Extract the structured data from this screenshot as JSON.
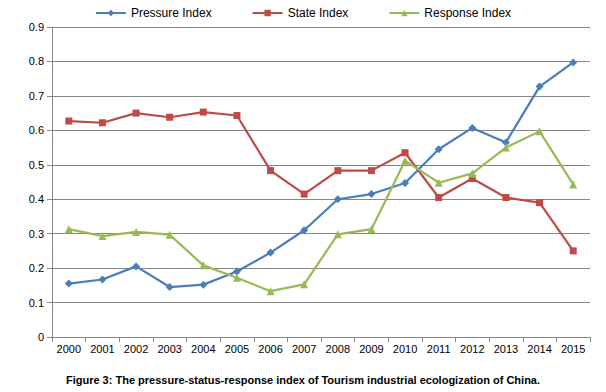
{
  "chart_data": {
    "type": "line",
    "title": "Figure 3: The pressure-status-response index of Tourism industrial ecologization of China.",
    "categories": [
      "2000",
      "2001",
      "2002",
      "2003",
      "2004",
      "2005",
      "2006",
      "2007",
      "2008",
      "2009",
      "2010",
      "2011",
      "2012",
      "2013",
      "2014",
      "2015"
    ],
    "series": [
      {
        "name": "Pressure Index",
        "color": "#4a7ebb",
        "marker": "diamond",
        "line_style": "solid",
        "values": [
          0.155,
          0.167,
          0.205,
          0.145,
          0.152,
          0.19,
          0.245,
          0.31,
          0.4,
          0.415,
          0.447,
          0.545,
          0.607,
          0.565,
          0.727,
          0.797
        ]
      },
      {
        "name": "State Index",
        "color": "#be4b48",
        "marker": "square",
        "line_style": "solid",
        "values": [
          0.627,
          0.622,
          0.65,
          0.638,
          0.653,
          0.643,
          0.483,
          0.415,
          0.483,
          0.483,
          0.535,
          0.405,
          0.46,
          0.405,
          0.39,
          0.25
        ]
      },
      {
        "name": "Response Index",
        "color": "#98b954",
        "marker": "triangle",
        "line_style": "solid",
        "values": [
          0.313,
          0.293,
          0.305,
          0.297,
          0.208,
          0.172,
          0.133,
          0.153,
          0.298,
          0.313,
          0.512,
          0.448,
          0.475,
          0.55,
          0.597,
          0.443
        ]
      }
    ],
    "ylim": [
      0,
      0.9
    ],
    "yticks": [
      0,
      0.1,
      0.2,
      0.3,
      0.4,
      0.5,
      0.6,
      0.7,
      0.8,
      0.9
    ],
    "grid": true,
    "legend": "top"
  }
}
